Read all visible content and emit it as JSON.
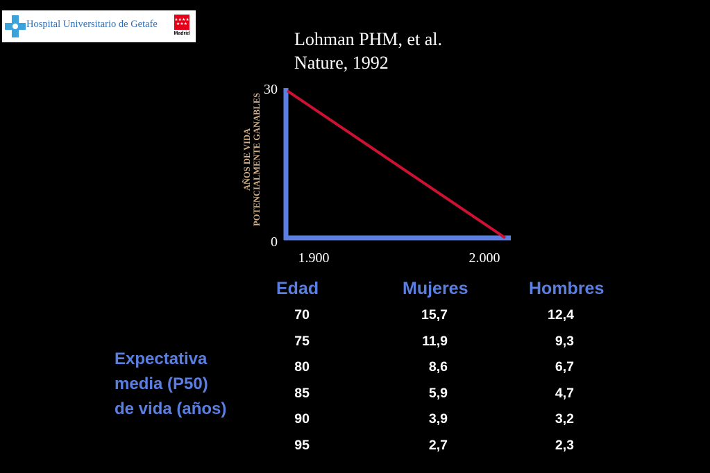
{
  "header": {
    "logo_text": "Hospital Universitario de Getafe",
    "logo_secondary": "Madrid"
  },
  "citation": {
    "line1": "Lohman PHM, et al.",
    "line2": "Nature, 1992"
  },
  "colors": {
    "axis": "#5b7fe0",
    "line": "#cc1133",
    "heading": "#5b7fe0",
    "text": "#ffffff",
    "axis_title": "#d4b089"
  },
  "chart_data": {
    "type": "line",
    "ylabel_line1": "AÑOS DE VIDA",
    "ylabel_line2": "POTENCIALMENTE GANABLES",
    "x_tick_labels": [
      "1.900",
      "2.000"
    ],
    "y_tick_labels": [
      "0",
      "30"
    ],
    "xlim": [
      1900,
      2000
    ],
    "ylim": [
      0,
      30
    ],
    "series": [
      {
        "x": [
          1900,
          2000
        ],
        "y": [
          30,
          0
        ]
      }
    ],
    "grid": false
  },
  "table": {
    "headers": [
      "Edad",
      "Mujeres",
      "Hombres"
    ],
    "rows": [
      [
        "70",
        "15,7",
        "12,4"
      ],
      [
        "75",
        "11,9",
        "9,3"
      ],
      [
        "80",
        "8,6",
        "6,7"
      ],
      [
        "85",
        "5,9",
        "4,7"
      ],
      [
        "90",
        "3,9",
        "3,2"
      ],
      [
        "95",
        "2,7",
        "2,3"
      ]
    ]
  },
  "side_label": {
    "line1": "Expectativa",
    "line2": "media (P50)",
    "line3": "de vida (años)"
  }
}
